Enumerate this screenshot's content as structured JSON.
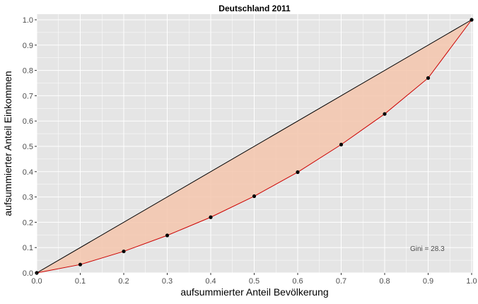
{
  "chart_data": {
    "type": "line",
    "title": "Deutschland 2011",
    "xlabel": "aufsummierter Anteil Bevölkerung",
    "ylabel": "aufsummierter Anteil Einkommen",
    "xlim": [
      0,
      1
    ],
    "ylim": [
      0,
      1
    ],
    "x_ticks": [
      "0.0",
      "0.1",
      "0.2",
      "0.3",
      "0.4",
      "0.5",
      "0.6",
      "0.7",
      "0.8",
      "0.9",
      "1.0"
    ],
    "y_ticks": [
      "0.0",
      "0.1",
      "0.2",
      "0.3",
      "0.4",
      "0.5",
      "0.6",
      "0.7",
      "0.8",
      "0.9",
      "1.0"
    ],
    "grid": true,
    "series": [
      {
        "x": [
          0,
          1
        ],
        "y": [
          0,
          1
        ],
        "color": "#000000"
      },
      {
        "x": [
          0,
          0.1,
          0.2,
          0.3,
          0.4,
          0.5,
          0.6,
          0.7,
          0.8,
          0.9,
          1.0
        ],
        "y": [
          0,
          0.033,
          0.085,
          0.148,
          0.22,
          0.303,
          0.398,
          0.507,
          0.628,
          0.77,
          1.0
        ],
        "color": "#cc0000",
        "point_color": "#000000"
      }
    ],
    "fill_color": "#f4c6ad",
    "panel_background": "#e5e5e5",
    "grid_color": "#ffffff",
    "annotation": "Gini = 28.3"
  }
}
